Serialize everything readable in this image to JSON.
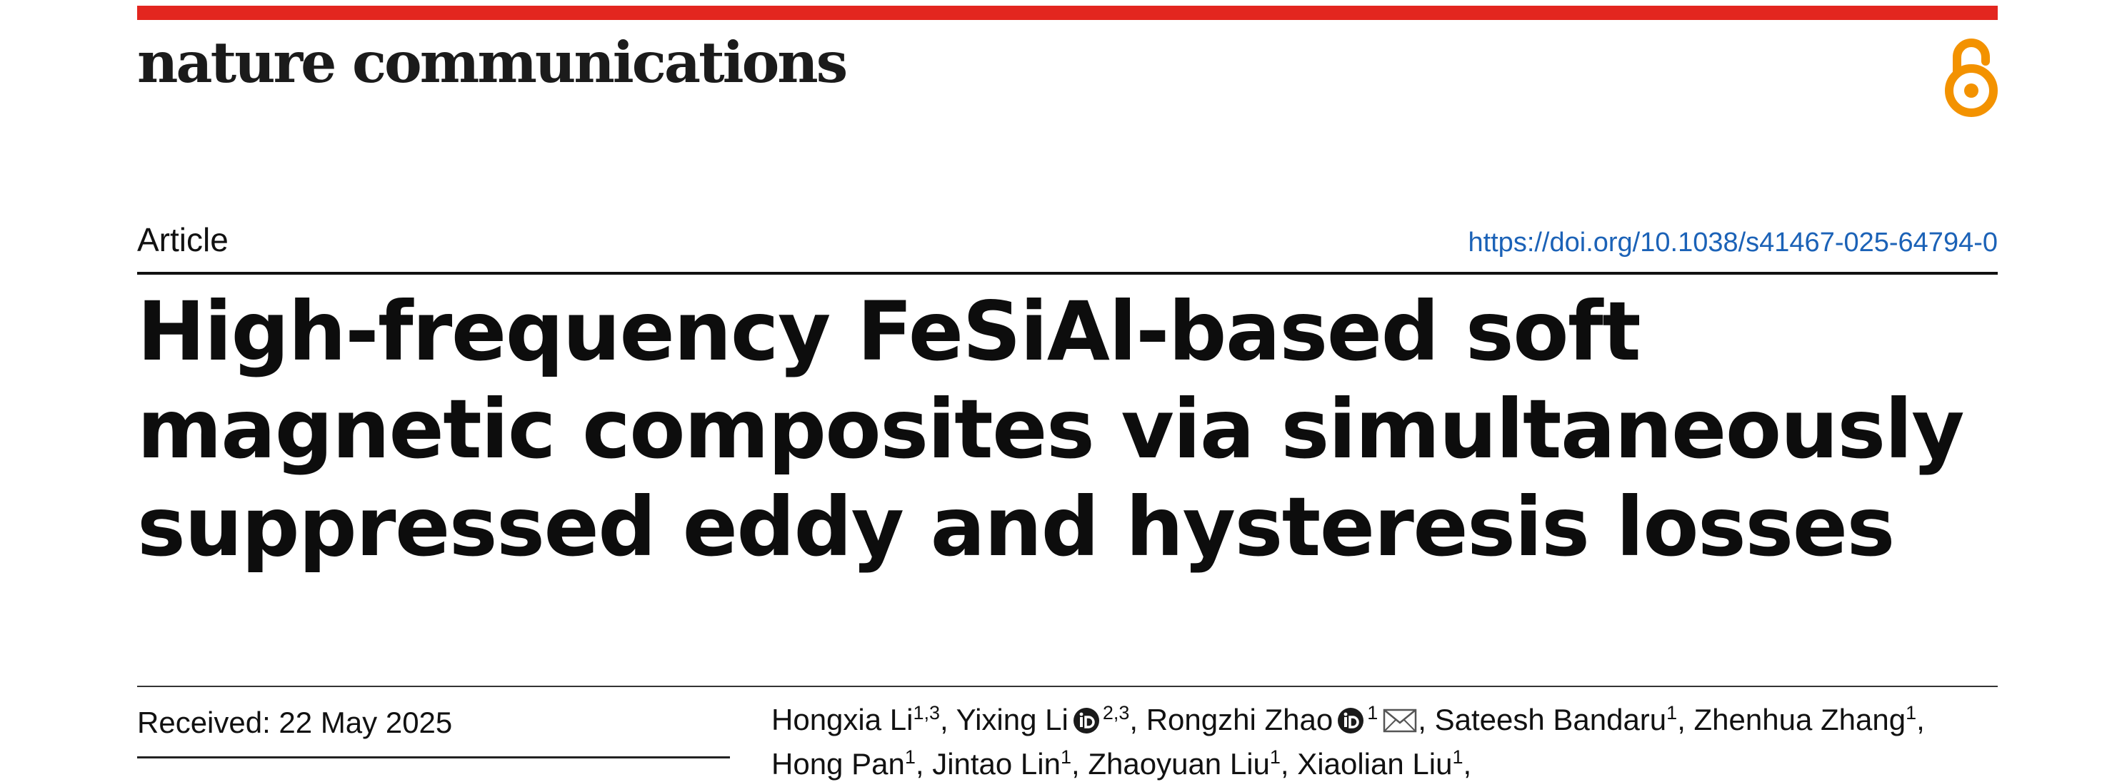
{
  "header": {
    "journal": "nature communications",
    "accent_color": "#e3261f",
    "open_access_icon": "open-access-icon",
    "open_access_color": "#f39200"
  },
  "article": {
    "type": "Article",
    "doi": "https://doi.org/10.1038/s41467-025-64794-0",
    "title": "High-frequency FeSiAl-based soft magnetic composites via simultaneously suppressed eddy and hysteresis losses",
    "received": "Received: 22 May 2025"
  },
  "authors": [
    {
      "name": "Hongxia Li",
      "sup": "1,3",
      "orcid": false,
      "email": false,
      "sep": ", "
    },
    {
      "name": "Yixing Li",
      "sup": "2,3",
      "orcid": true,
      "email": false,
      "sep": ", "
    },
    {
      "name": "Rongzhi Zhao",
      "sup": "1",
      "orcid": true,
      "email": true,
      "sep": ", "
    },
    {
      "name": "Sateesh Bandaru",
      "sup": "1",
      "orcid": false,
      "email": false,
      "sep": ", "
    },
    {
      "name": "Zhenhua Zhang",
      "sup": "1",
      "orcid": false,
      "email": false,
      "sep": ", "
    },
    {
      "name": "Hong Pan",
      "sup": "1",
      "orcid": false,
      "email": false,
      "sep": ", "
    },
    {
      "name": "Jintao Lin",
      "sup": "1",
      "orcid": false,
      "email": false,
      "sep": ", "
    },
    {
      "name": "Zhaoyuan Liu",
      "sup": "1",
      "orcid": false,
      "email": false,
      "sep": ", "
    },
    {
      "name": "Xiaolian Liu",
      "sup": "1",
      "orcid": false,
      "email": false,
      "sep": ","
    }
  ]
}
